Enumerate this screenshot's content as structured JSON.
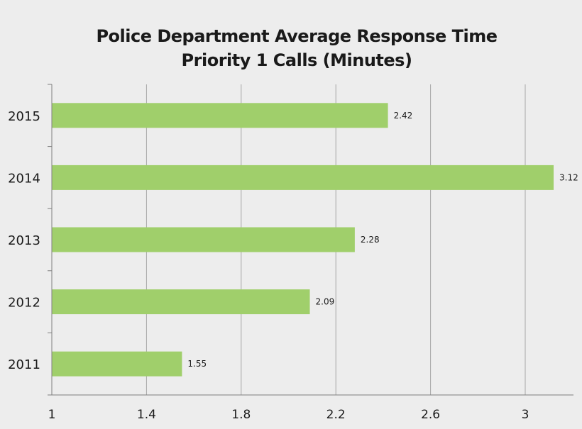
{
  "chart_data": {
    "type": "bar",
    "orientation": "horizontal",
    "title_lines": [
      "Police Department Average Response Time",
      "Priority 1 Calls (Minutes)"
    ],
    "categories": [
      "2015",
      "2014",
      "2013",
      "2012",
      "2011"
    ],
    "values": [
      2.42,
      3.12,
      2.28,
      2.09,
      1.55
    ],
    "value_labels": [
      "2.42",
      "3.12",
      "2.28",
      "2.09",
      "1.55"
    ],
    "x_ticks": [
      "1",
      "1.4",
      "1.8",
      "2.2",
      "2.6",
      "3"
    ],
    "x_tick_values": [
      1,
      1.4,
      1.8,
      2.2,
      2.6,
      3
    ],
    "xlim": [
      1,
      3.2
    ],
    "grid": "vertical",
    "bar_color": "#a0cf6b",
    "background": "#ededed",
    "gridline_color": "#a6a6a6"
  }
}
